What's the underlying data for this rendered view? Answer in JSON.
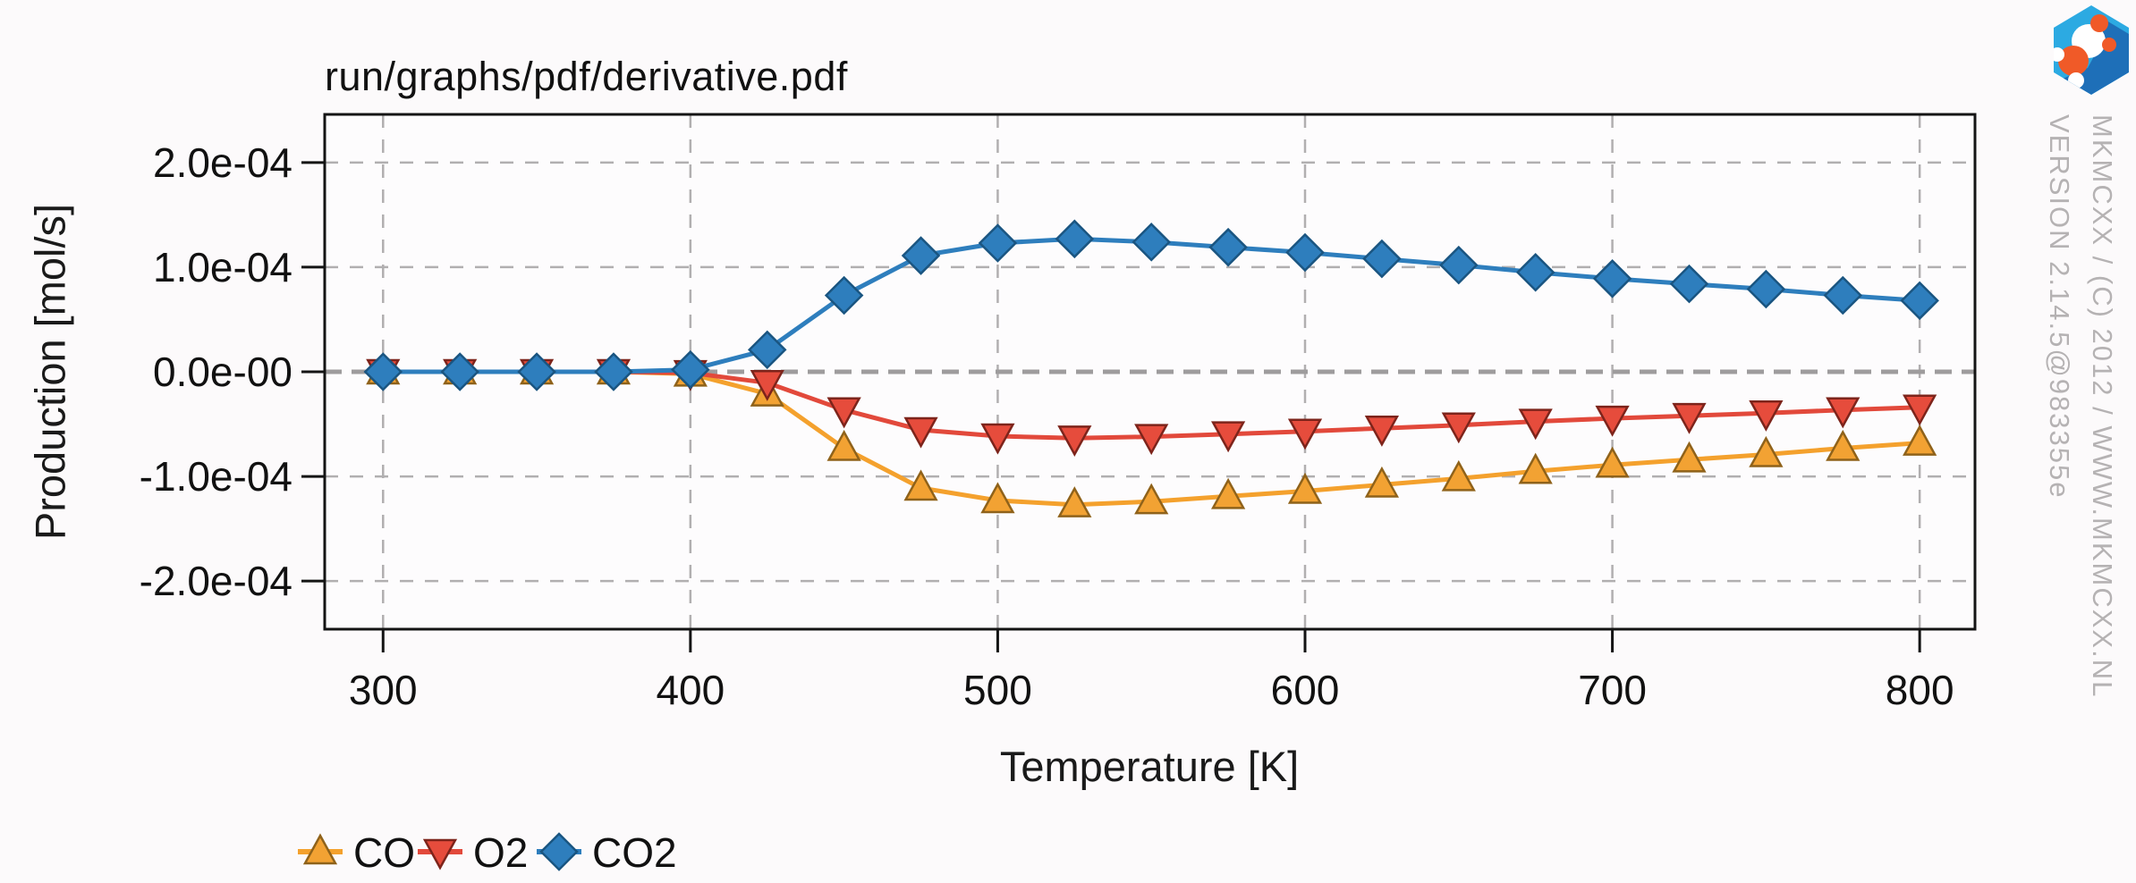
{
  "header": {
    "title": "run/graphs/pdf/derivative.pdf"
  },
  "watermark": {
    "brand": "MKMCXX / (C) 2012 / WWW.MKMCXX.NL",
    "version": "VERSION 2.14.5@983355e",
    "color": "#b5b2b3"
  },
  "logo": {
    "name": "mkmcxx-hexagon-molecule-logo",
    "hex_light": "#2caae2",
    "hex_dark": "#1e6fb8",
    "atom_orange": "#f05a28",
    "atom_white": "#ffffff"
  },
  "chart_data": {
    "type": "line",
    "title": "run/graphs/pdf/derivative.pdf",
    "xlabel": "Temperature [K]",
    "ylabel": "Production [mol/s]",
    "grid": true,
    "legend_position": "bottom-left",
    "xlim": [
      281,
      818
    ],
    "ylim": [
      -0.000246,
      0.000246
    ],
    "xticks": [
      300,
      400,
      500,
      600,
      700,
      800
    ],
    "yticks": [
      {
        "value": 0.0002,
        "label": "2.0e-04"
      },
      {
        "value": 0.0001,
        "label": "1.0e-04"
      },
      {
        "value": 0,
        "label": "0.0e-00"
      },
      {
        "value": -0.0001,
        "label": "-1.0e-04"
      },
      {
        "value": -0.0002,
        "label": "-2.0e-04"
      }
    ],
    "x": [
      300,
      325,
      350,
      375,
      400,
      425,
      450,
      475,
      500,
      525,
      550,
      575,
      600,
      625,
      650,
      675,
      700,
      725,
      750,
      775,
      800
    ],
    "series": [
      {
        "name": "CO",
        "color": "#f4a12d",
        "marker": "triangle-up",
        "marker_fill": "#f2a233",
        "marker_edge": "#8f621a",
        "values": [
          0,
          0,
          0,
          0,
          -2e-06,
          -2.1e-05,
          -7.3e-05,
          -0.000111,
          -0.000123,
          -0.000127,
          -0.000124,
          -0.000119,
          -0.000114,
          -0.000108,
          -0.000102,
          -9.5e-05,
          -8.9e-05,
          -8.4e-05,
          -7.9e-05,
          -7.3e-05,
          -6.8e-05
        ]
      },
      {
        "name": "O2",
        "color": "#e2493b",
        "marker": "triangle-down",
        "marker_fill": "#e64c3c",
        "marker_edge": "#7d241b",
        "values": [
          0,
          0,
          0,
          0,
          -1e-06,
          -1.05e-05,
          -3.65e-05,
          -5.55e-05,
          -6.15e-05,
          -6.35e-05,
          -6.2e-05,
          -5.95e-05,
          -5.7e-05,
          -5.4e-05,
          -5.1e-05,
          -4.75e-05,
          -4.45e-05,
          -4.2e-05,
          -3.95e-05,
          -3.65e-05,
          -3.4e-05
        ]
      },
      {
        "name": "CO2",
        "color": "#2e7ebd",
        "marker": "diamond",
        "marker_fill": "#2e7ebd",
        "marker_edge": "#1a5581",
        "values": [
          0,
          0,
          0,
          0,
          2e-06,
          2.1e-05,
          7.3e-05,
          0.000111,
          0.000123,
          0.000127,
          0.000124,
          0.000119,
          0.000114,
          0.000108,
          0.000102,
          9.5e-05,
          8.9e-05,
          8.4e-05,
          7.9e-05,
          7.3e-05,
          6.8e-05
        ]
      }
    ]
  }
}
